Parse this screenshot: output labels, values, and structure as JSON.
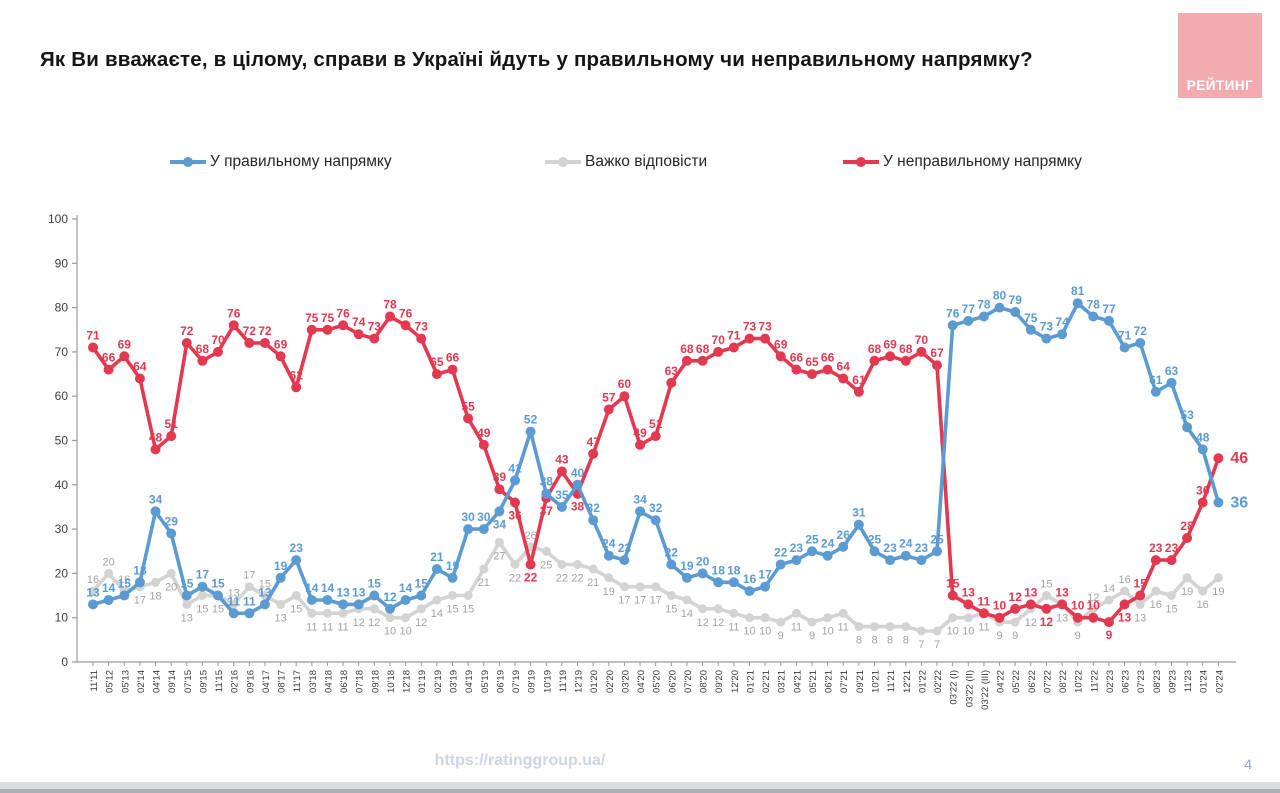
{
  "header": {
    "title": "Як Ви вважаєте, в цілому, справи в Україні йдуть у правильному чи неправильному напрямку?"
  },
  "logo": {
    "text": "РЕЙТИНГ",
    "bg": "#f2acb0",
    "fg": "#ffffff"
  },
  "footer": {
    "url": "https://ratinggroup.ua/",
    "page": "4"
  },
  "chart_data": {
    "type": "line",
    "title": "Як Ви вважаєте, в цілому, справи в Україні йдуть у правильному чи неправильному напрямку?",
    "grid": false,
    "legend_position": "top",
    "ylim": [
      0,
      100
    ],
    "y_ticks": [
      0,
      10,
      20,
      30,
      40,
      50,
      60,
      70,
      80,
      90,
      100
    ],
    "categories": [
      "11'11",
      "05'12",
      "05'13",
      "02'14",
      "04'14",
      "09'14",
      "07'15",
      "09'15",
      "11'15",
      "02'16",
      "09'16",
      "04'17",
      "08'17",
      "11'17",
      "03'18",
      "04'18",
      "06'18",
      "07'18",
      "09'18",
      "10'18",
      "12'18",
      "01'19",
      "02'19",
      "03'19",
      "04'19",
      "05'19",
      "06'19",
      "07'19",
      "09'19",
      "10'19",
      "11'19",
      "12'19",
      "01'20",
      "02'20",
      "03'20",
      "04'20",
      "05'20",
      "06'20",
      "07'20",
      "08'20",
      "09'20",
      "12'20",
      "01'21",
      "02'21",
      "03'21",
      "04'21",
      "05'21",
      "06'21",
      "07'21",
      "09'21",
      "10'21",
      "11'21",
      "12'21",
      "01'22",
      "02'22",
      "03'22 (I)",
      "03'22 (II)",
      "03'22 (III)",
      "04'22",
      "05'22",
      "06'22",
      "07'22",
      "08'22",
      "10'22",
      "11'22",
      "02'23",
      "06'23",
      "07'23",
      "08'23",
      "09'23",
      "11'23",
      "01'24",
      "02'24"
    ],
    "series": [
      {
        "name": "У правильному напрямку",
        "color": "#5b9bd1",
        "label_color": "#5b9bd5",
        "values": [
          13,
          14,
          15,
          18,
          34,
          29,
          15,
          17,
          15,
          11,
          11,
          13,
          19,
          23,
          14,
          14,
          13,
          13,
          15,
          12,
          14,
          15,
          21,
          19,
          30,
          30,
          34,
          41,
          52,
          38,
          35,
          40,
          32,
          24,
          23,
          34,
          32,
          22,
          19,
          20,
          18,
          18,
          16,
          17,
          22,
          23,
          25,
          24,
          26,
          31,
          25,
          23,
          24,
          23,
          25,
          76,
          77,
          78,
          80,
          79,
          75,
          73,
          74,
          81,
          78,
          77,
          71,
          72,
          61,
          63,
          53,
          48,
          36
        ]
      },
      {
        "name": "Важко відповісти",
        "color": "#d3d3d3",
        "label_color": "#a3a3a3",
        "values": [
          16,
          20,
          16,
          17,
          18,
          20,
          13,
          15,
          15,
          13,
          17,
          15,
          13,
          15,
          11,
          11,
          11,
          12,
          12,
          10,
          10,
          12,
          14,
          15,
          15,
          21,
          27,
          22,
          26,
          25,
          22,
          22,
          21,
          19,
          17,
          17,
          17,
          15,
          14,
          12,
          12,
          11,
          10,
          10,
          9,
          11,
          9,
          10,
          11,
          8,
          8,
          8,
          8,
          7,
          7,
          10,
          10,
          11,
          9,
          9,
          12,
          15,
          13,
          9,
          12,
          14,
          16,
          13,
          16,
          15,
          19,
          16,
          19
        ]
      },
      {
        "name": "У неправильному напрямку",
        "color": "#e23950",
        "label_color": "#e23950",
        "values": [
          71,
          66,
          69,
          64,
          48,
          51,
          72,
          68,
          70,
          76,
          72,
          72,
          69,
          62,
          75,
          75,
          76,
          74,
          73,
          78,
          76,
          73,
          65,
          66,
          55,
          49,
          39,
          36,
          22,
          37,
          43,
          38,
          47,
          57,
          60,
          49,
          51,
          63,
          68,
          68,
          70,
          71,
          73,
          73,
          69,
          66,
          65,
          66,
          64,
          61,
          68,
          69,
          68,
          70,
          67,
          15,
          13,
          11,
          10,
          12,
          13,
          12,
          13,
          10,
          10,
          9,
          13,
          15,
          23,
          23,
          28,
          36,
          46
        ]
      }
    ]
  }
}
